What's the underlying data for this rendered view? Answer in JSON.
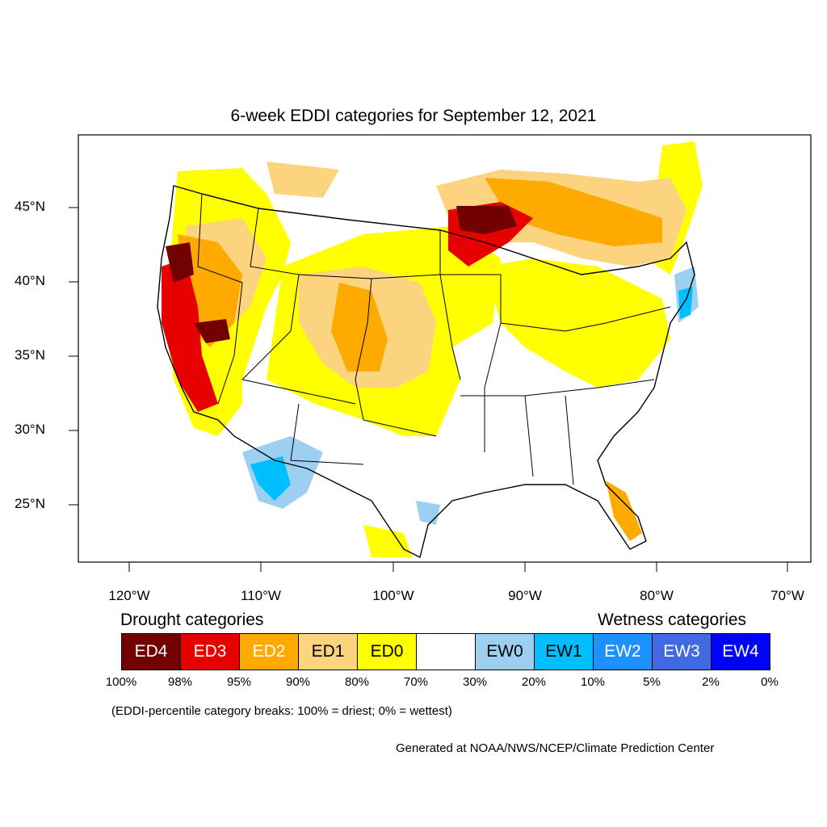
{
  "title": "6-week EDDI categories for September 12, 2021",
  "lat_labels": [
    "45°N",
    "40°N",
    "35°N",
    "30°N",
    "25°N"
  ],
  "lon_labels": [
    "120°W",
    "110°W",
    "100°W",
    "90°W",
    "80°W",
    "70°W"
  ],
  "legend": {
    "drought_heading": "Drought categories",
    "wetness_heading": "Wetness categories",
    "categories": [
      {
        "label": "ED4",
        "color": "#730000",
        "text_color": "#ffffff"
      },
      {
        "label": "ED3",
        "color": "#e60000",
        "text_color": "#ffffff"
      },
      {
        "label": "ED2",
        "color": "#ffaa00",
        "text_color": "#ffffff"
      },
      {
        "label": "ED1",
        "color": "#fcd37f",
        "text_color": "#000000"
      },
      {
        "label": "ED0",
        "color": "#ffff00",
        "text_color": "#000000"
      },
      {
        "label": "",
        "color": "#ffffff",
        "text_color": "#000000"
      },
      {
        "label": "EW0",
        "color": "#9dd0f0",
        "text_color": "#000000"
      },
      {
        "label": "EW1",
        "color": "#00bfff",
        "text_color": "#000000"
      },
      {
        "label": "EW2",
        "color": "#1e90ff",
        "text_color": "#ffffff"
      },
      {
        "label": "EW3",
        "color": "#4169e1",
        "text_color": "#ffffff"
      },
      {
        "label": "EW4",
        "color": "#0000ff",
        "text_color": "#ffffff"
      }
    ],
    "breaks": [
      "100%",
      "98%",
      "95%",
      "90%",
      "80%",
      "70%",
      "30%",
      "20%",
      "10%",
      "5%",
      "2%",
      "0%"
    ]
  },
  "note": "(EDDI-percentile category breaks: 100% = driest; 0% = wettest)",
  "credit": "Generated at NOAA/NWS/NCEP/Climate Prediction Center"
}
